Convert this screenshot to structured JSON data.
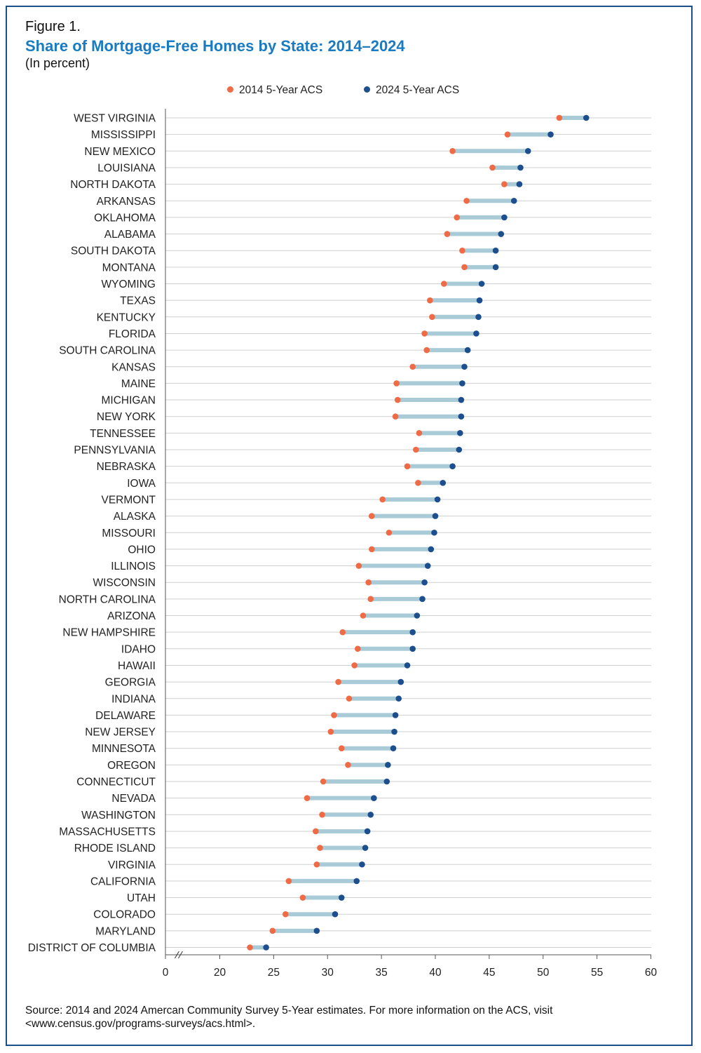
{
  "figure_label": "Figure 1.",
  "title": "Share of Mortgage-Free Homes by State: 2014–2024",
  "subtitle": "(In percent)",
  "legend": [
    {
      "label": "2014 5-Year ACS",
      "color": "#ef6b45"
    },
    {
      "label": "2024 5-Year ACS",
      "color": "#1d4f8f"
    }
  ],
  "source_text": "Source: 2014 and 2024 Amercan Community Survey 5-Year estimates. For more information on the ACS, visit <www.census.gov/programs-surveys/acs.html>.",
  "colors": {
    "frame": "#1b4f8a",
    "title": "#1a7bc1",
    "connector": "#a9cbd8",
    "grid": "#cfcfcf"
  },
  "chart_data": {
    "type": "dumbbell",
    "title": "Share of Mortgage-Free Homes by State: 2014–2024",
    "xlabel": "",
    "ylabel": "",
    "xlim": [
      0,
      60
    ],
    "x_ticks": [
      0,
      20,
      25,
      30,
      35,
      40,
      45,
      50,
      55,
      60
    ],
    "axis_break_between": [
      0,
      20
    ],
    "grid": true,
    "legend_position": "top-center",
    "categories": [
      "WEST VIRGINIA",
      "MISSISSIPPI",
      "NEW MEXICO",
      "LOUISIANA",
      "NORTH DAKOTA",
      "ARKANSAS",
      "OKLAHOMA",
      "ALABAMA",
      "SOUTH DAKOTA",
      "MONTANA",
      "WYOMING",
      "TEXAS",
      "KENTUCKY",
      "FLORIDA",
      "SOUTH CAROLINA",
      "KANSAS",
      "MAINE",
      "MICHIGAN",
      "NEW YORK",
      "TENNESSEE",
      "PENNSYLVANIA",
      "NEBRASKA",
      "IOWA",
      "VERMONT",
      "ALASKA",
      "MISSOURI",
      "OHIO",
      "ILLINOIS",
      "WISCONSIN",
      "NORTH CAROLINA",
      "ARIZONA",
      "NEW HAMPSHIRE",
      "IDAHO",
      "HAWAII",
      "GEORGIA",
      "INDIANA",
      "DELAWARE",
      "NEW JERSEY",
      "MINNESOTA",
      "OREGON",
      "CONNECTICUT",
      "NEVADA",
      "WASHINGTON",
      "MASSACHUSETTS",
      "RHODE ISLAND",
      "VIRGINIA",
      "CALIFORNIA",
      "UTAH",
      "COLORADO",
      "MARYLAND",
      "DISTRICT OF COLUMBIA"
    ],
    "series": [
      {
        "name": "2014 5-Year ACS",
        "values": [
          51.5,
          46.7,
          41.6,
          45.3,
          46.4,
          42.9,
          42.0,
          41.1,
          42.5,
          42.7,
          40.8,
          39.5,
          39.7,
          39.0,
          39.2,
          37.9,
          36.4,
          36.5,
          36.3,
          38.5,
          38.2,
          37.4,
          38.4,
          35.1,
          34.1,
          35.7,
          34.1,
          32.9,
          33.8,
          34.0,
          33.3,
          31.4,
          32.8,
          32.5,
          31.0,
          32.0,
          30.6,
          30.3,
          31.3,
          31.9,
          29.6,
          28.1,
          29.5,
          28.9,
          29.3,
          29.0,
          26.4,
          27.7,
          26.1,
          24.9,
          22.8
        ]
      },
      {
        "name": "2024 5-Year ACS",
        "values": [
          54.0,
          50.7,
          48.6,
          47.9,
          47.8,
          47.3,
          46.4,
          46.1,
          45.6,
          45.6,
          44.3,
          44.1,
          44.0,
          43.8,
          43.0,
          42.7,
          42.5,
          42.4,
          42.4,
          42.3,
          42.2,
          41.6,
          40.7,
          40.2,
          40.0,
          39.9,
          39.6,
          39.3,
          39.0,
          38.8,
          38.3,
          37.9,
          37.9,
          37.4,
          36.8,
          36.6,
          36.3,
          36.2,
          36.1,
          35.6,
          35.5,
          34.3,
          34.0,
          33.7,
          33.5,
          33.2,
          32.7,
          31.3,
          30.7,
          29.0,
          24.3
        ]
      }
    ]
  }
}
